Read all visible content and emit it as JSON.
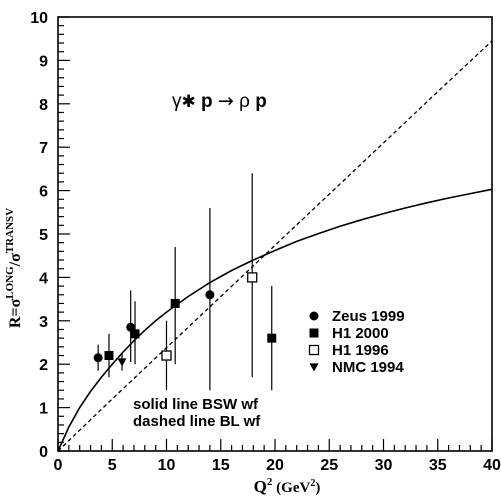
{
  "chart_data": {
    "type": "scatter",
    "title": "",
    "reaction": {
      "gamma": "γ",
      "star": "✱",
      "p1": "p",
      "arrow": "→",
      "rho": "ρ",
      "p2": "p"
    },
    "xlabel": {
      "main": "Q",
      "sup": "2",
      "unit_open": " (GeV",
      "unit_sup": "2",
      "unit_close": ")"
    },
    "ylabel": {
      "main": "R=σ",
      "sup1": "LONG",
      "slash": "/σ",
      "sup2": "TRANSV"
    },
    "xlim": [
      0,
      40
    ],
    "ylim": [
      0,
      10
    ],
    "xticks": [
      "0",
      "5",
      "10",
      "15",
      "20",
      "25",
      "30",
      "35",
      "40"
    ],
    "yticks": [
      "0",
      "1",
      "2",
      "3",
      "4",
      "5",
      "6",
      "7",
      "8",
      "9",
      "10"
    ],
    "series": [
      {
        "name": "Zeus 1999",
        "marker": "filled-circle",
        "points": [
          {
            "x": 3.7,
            "y": 2.15,
            "ylo": 1.85,
            "yhi": 2.45
          },
          {
            "x": 6.7,
            "y": 2.85,
            "ylo": 2.05,
            "yhi": 3.7
          },
          {
            "x": 14.0,
            "y": 3.6,
            "ylo": 1.4,
            "yhi": 5.6
          }
        ]
      },
      {
        "name": "H1 2000",
        "marker": "filled-square",
        "points": [
          {
            "x": 4.7,
            "y": 2.2,
            "ylo": 1.7,
            "yhi": 2.7
          },
          {
            "x": 7.1,
            "y": 2.7,
            "ylo": 2.0,
            "yhi": 3.45
          },
          {
            "x": 10.8,
            "y": 3.4,
            "ylo": 2.0,
            "yhi": 4.7
          },
          {
            "x": 19.7,
            "y": 2.6,
            "ylo": 1.4,
            "yhi": 3.8
          }
        ]
      },
      {
        "name": "H1 1996",
        "marker": "open-square",
        "points": [
          {
            "x": 10.0,
            "y": 2.2,
            "ylo": 1.4,
            "yhi": 3.0
          },
          {
            "x": 17.9,
            "y": 4.0,
            "ylo": 1.7,
            "yhi": 6.4
          }
        ]
      },
      {
        "name": "NMC 1994",
        "marker": "filled-triangle-down",
        "points": [
          {
            "x": 5.9,
            "y": 2.05,
            "ylo": 1.85,
            "yhi": 2.25
          }
        ]
      }
    ],
    "curves": [
      {
        "style": "solid",
        "points": [
          [
            0,
            0
          ],
          [
            1,
            0.55
          ],
          [
            2,
            1.0
          ],
          [
            3,
            1.37
          ],
          [
            4,
            1.7
          ],
          [
            5,
            2.0
          ],
          [
            6,
            2.28
          ],
          [
            7,
            2.54
          ],
          [
            8,
            2.78
          ],
          [
            9,
            3.0
          ],
          [
            10,
            3.2
          ],
          [
            12,
            3.56
          ],
          [
            14,
            3.88
          ],
          [
            16,
            4.16
          ],
          [
            18,
            4.4
          ],
          [
            20,
            4.62
          ],
          [
            22,
            4.83
          ],
          [
            24,
            5.01
          ],
          [
            26,
            5.18
          ],
          [
            28,
            5.33
          ],
          [
            30,
            5.47
          ],
          [
            32,
            5.6
          ],
          [
            34,
            5.72
          ],
          [
            36,
            5.83
          ],
          [
            38,
            5.93
          ],
          [
            40,
            6.03
          ]
        ]
      },
      {
        "style": "dashed",
        "points": [
          [
            0,
            0
          ],
          [
            1,
            0.24
          ],
          [
            2,
            0.48
          ],
          [
            3,
            0.72
          ],
          [
            4,
            0.96
          ],
          [
            5,
            1.2
          ],
          [
            10,
            2.38
          ],
          [
            15,
            3.56
          ],
          [
            20,
            4.74
          ],
          [
            25,
            5.92
          ],
          [
            30,
            7.1
          ],
          [
            35,
            8.28
          ],
          [
            40,
            9.45
          ]
        ]
      }
    ],
    "notes": [
      "solid line BSW wf",
      "dashed line BL wf"
    ],
    "legend_position": "right"
  }
}
